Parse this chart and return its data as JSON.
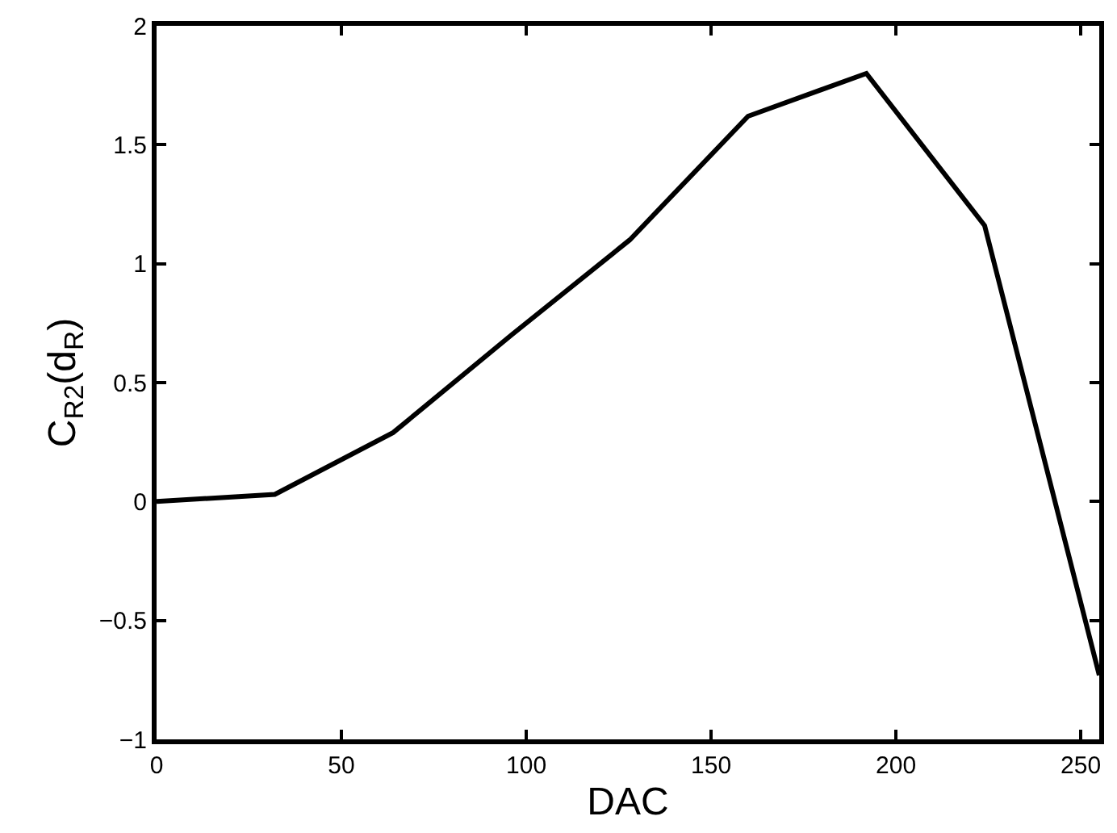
{
  "chart_data": {
    "type": "line",
    "xlabel": "DAC",
    "ylabel": "C$_{R2}$(d$_{R}$)",
    "x": [
      0,
      32,
      64,
      96,
      128,
      160,
      192,
      224,
      255
    ],
    "series": [
      {
        "color": "#000000",
        "values": [
          0,
          0.03,
          0.29,
          0.7,
          1.1,
          1.62,
          1.8,
          1.16,
          -0.73
        ]
      }
    ],
    "xlim": [
      0,
      255
    ],
    "xticks": [
      0,
      50,
      100,
      150,
      200,
      250
    ],
    "ylim": [
      -1,
      2
    ],
    "yticks": [
      -1,
      -0.5,
      0,
      0.5,
      1,
      1.5,
      2
    ],
    "grid": false,
    "marker": "none",
    "line_style": "solid"
  }
}
